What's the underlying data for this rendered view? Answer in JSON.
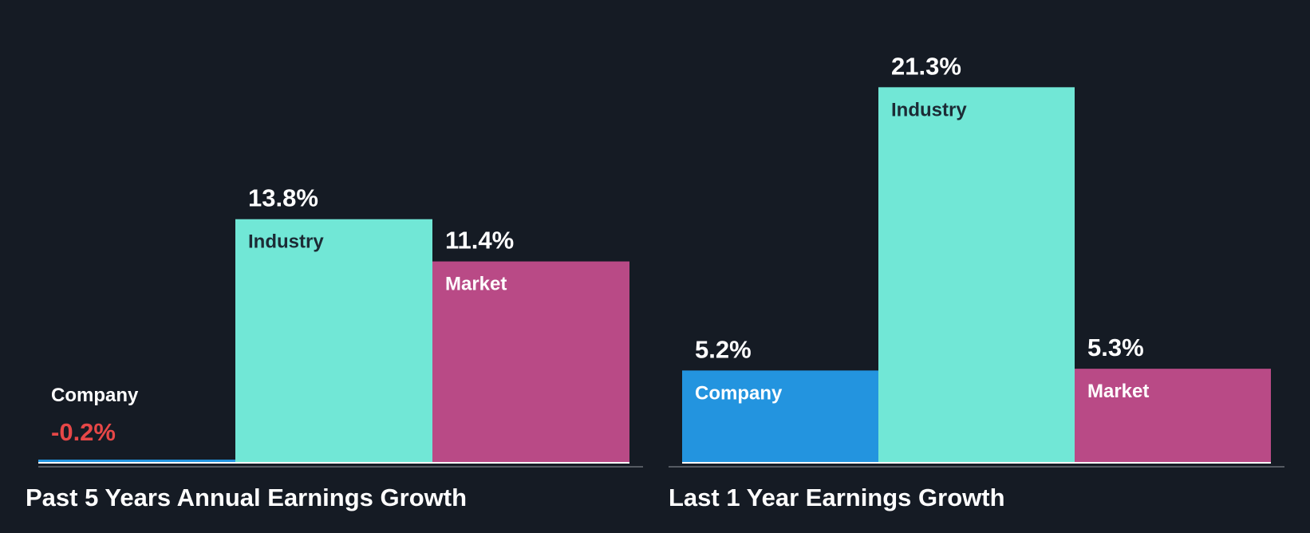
{
  "colors": {
    "background": "#151b24",
    "company": "#2394df",
    "industry": "#71e7d6",
    "market": "#b94a86",
    "negative_value": "#e64747",
    "baseline": "#ffffff",
    "axis": "#555a62"
  },
  "chart_data": [
    {
      "type": "bar",
      "title": "Past 5 Years Annual Earnings Growth",
      "categories": [
        "Company",
        "Industry",
        "Market"
      ],
      "values": [
        -0.2,
        13.8,
        11.4
      ],
      "value_labels": [
        "-0.2%",
        "13.8%",
        "11.4%"
      ],
      "ylim": [
        0,
        22
      ]
    },
    {
      "type": "bar",
      "title": "Last 1 Year Earnings Growth",
      "categories": [
        "Company",
        "Industry",
        "Market"
      ],
      "values": [
        5.2,
        21.3,
        5.3
      ],
      "value_labels": [
        "5.2%",
        "21.3%",
        "5.3%"
      ],
      "ylim": [
        0,
        22
      ]
    }
  ]
}
